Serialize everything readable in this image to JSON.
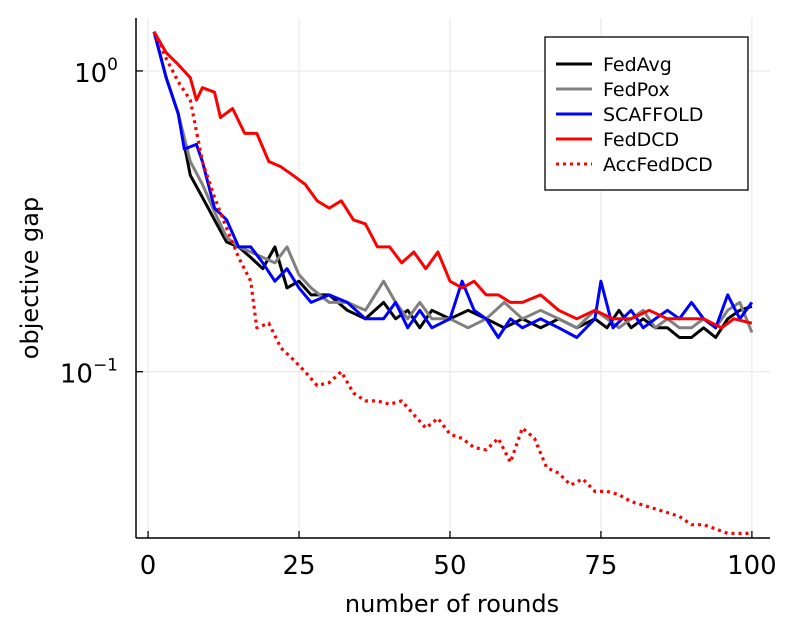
{
  "chart_data": {
    "type": "line",
    "title": "",
    "xlabel": "number of rounds",
    "ylabel": "objective gap",
    "xlim": [
      -2,
      103
    ],
    "ylim": [
      0.028,
      1.5
    ],
    "yscale": "log",
    "grid": true,
    "legend_position": "top-right",
    "x_ticks": [
      {
        "value": 0,
        "label": "0"
      },
      {
        "value": 25,
        "label": "25"
      },
      {
        "value": 50,
        "label": "50"
      },
      {
        "value": 75,
        "label": "75"
      },
      {
        "value": 100,
        "label": "100"
      }
    ],
    "y_ticks": [
      {
        "value": 1,
        "base": "10",
        "exp": "0"
      },
      {
        "value": 0.1,
        "base": "10",
        "exp": "−1"
      }
    ],
    "series": [
      {
        "name": "FedAvg",
        "color": "#000000",
        "style": "solid",
        "points": [
          [
            1,
            1.35
          ],
          [
            3,
            0.95
          ],
          [
            5,
            0.72
          ],
          [
            7,
            0.45
          ],
          [
            9,
            0.38
          ],
          [
            11,
            0.32
          ],
          [
            13,
            0.27
          ],
          [
            15,
            0.26
          ],
          [
            17,
            0.24
          ],
          [
            19,
            0.22
          ],
          [
            21,
            0.26
          ],
          [
            23,
            0.19
          ],
          [
            25,
            0.2
          ],
          [
            27,
            0.18
          ],
          [
            30,
            0.18
          ],
          [
            33,
            0.16
          ],
          [
            36,
            0.15
          ],
          [
            39,
            0.17
          ],
          [
            41,
            0.15
          ],
          [
            43,
            0.16
          ],
          [
            45,
            0.14
          ],
          [
            47,
            0.16
          ],
          [
            50,
            0.15
          ],
          [
            53,
            0.16
          ],
          [
            56,
            0.15
          ],
          [
            59,
            0.14
          ],
          [
            62,
            0.15
          ],
          [
            65,
            0.14
          ],
          [
            68,
            0.15
          ],
          [
            71,
            0.14
          ],
          [
            74,
            0.15
          ],
          [
            76,
            0.14
          ],
          [
            78,
            0.16
          ],
          [
            80,
            0.14
          ],
          [
            82,
            0.15
          ],
          [
            84,
            0.14
          ],
          [
            86,
            0.14
          ],
          [
            88,
            0.13
          ],
          [
            90,
            0.13
          ],
          [
            92,
            0.14
          ],
          [
            94,
            0.13
          ],
          [
            96,
            0.15
          ],
          [
            98,
            0.16
          ],
          [
            100,
            0.165
          ]
        ]
      },
      {
        "name": "FedPox",
        "color": "#808080",
        "style": "solid",
        "points": [
          [
            1,
            1.35
          ],
          [
            3,
            0.95
          ],
          [
            5,
            0.72
          ],
          [
            7,
            0.5
          ],
          [
            9,
            0.42
          ],
          [
            11,
            0.34
          ],
          [
            13,
            0.28
          ],
          [
            15,
            0.26
          ],
          [
            17,
            0.25
          ],
          [
            19,
            0.24
          ],
          [
            21,
            0.23
          ],
          [
            23,
            0.26
          ],
          [
            25,
            0.21
          ],
          [
            27,
            0.19
          ],
          [
            30,
            0.17
          ],
          [
            33,
            0.17
          ],
          [
            36,
            0.16
          ],
          [
            39,
            0.2
          ],
          [
            41,
            0.17
          ],
          [
            43,
            0.15
          ],
          [
            45,
            0.17
          ],
          [
            47,
            0.15
          ],
          [
            50,
            0.15
          ],
          [
            53,
            0.14
          ],
          [
            56,
            0.15
          ],
          [
            59,
            0.17
          ],
          [
            62,
            0.15
          ],
          [
            65,
            0.16
          ],
          [
            68,
            0.15
          ],
          [
            71,
            0.14
          ],
          [
            74,
            0.16
          ],
          [
            76,
            0.15
          ],
          [
            78,
            0.14
          ],
          [
            80,
            0.15
          ],
          [
            82,
            0.16
          ],
          [
            84,
            0.14
          ],
          [
            86,
            0.15
          ],
          [
            88,
            0.14
          ],
          [
            90,
            0.14
          ],
          [
            92,
            0.15
          ],
          [
            94,
            0.14
          ],
          [
            96,
            0.16
          ],
          [
            98,
            0.17
          ],
          [
            100,
            0.135
          ]
        ]
      },
      {
        "name": "SCAFFOLD",
        "color": "#0000ff",
        "style": "solid",
        "points": [
          [
            1,
            1.35
          ],
          [
            3,
            0.95
          ],
          [
            5,
            0.72
          ],
          [
            6,
            0.55
          ],
          [
            8,
            0.57
          ],
          [
            9,
            0.5
          ],
          [
            11,
            0.35
          ],
          [
            13,
            0.32
          ],
          [
            15,
            0.26
          ],
          [
            17,
            0.26
          ],
          [
            19,
            0.23
          ],
          [
            21,
            0.2
          ],
          [
            23,
            0.22
          ],
          [
            25,
            0.19
          ],
          [
            27,
            0.17
          ],
          [
            30,
            0.18
          ],
          [
            33,
            0.17
          ],
          [
            36,
            0.15
          ],
          [
            39,
            0.15
          ],
          [
            41,
            0.17
          ],
          [
            43,
            0.14
          ],
          [
            45,
            0.16
          ],
          [
            47,
            0.14
          ],
          [
            50,
            0.15
          ],
          [
            52,
            0.2
          ],
          [
            54,
            0.16
          ],
          [
            56,
            0.15
          ],
          [
            58,
            0.13
          ],
          [
            60,
            0.15
          ],
          [
            62,
            0.14
          ],
          [
            65,
            0.15
          ],
          [
            68,
            0.14
          ],
          [
            71,
            0.13
          ],
          [
            74,
            0.15
          ],
          [
            75,
            0.2
          ],
          [
            77,
            0.14
          ],
          [
            80,
            0.16
          ],
          [
            82,
            0.14
          ],
          [
            84,
            0.15
          ],
          [
            86,
            0.16
          ],
          [
            88,
            0.15
          ],
          [
            90,
            0.17
          ],
          [
            92,
            0.15
          ],
          [
            94,
            0.14
          ],
          [
            96,
            0.18
          ],
          [
            98,
            0.15
          ],
          [
            100,
            0.17
          ]
        ]
      },
      {
        "name": "FedDCD",
        "color": "#ff0000",
        "style": "solid",
        "points": [
          [
            1,
            1.35
          ],
          [
            3,
            1.15
          ],
          [
            5,
            1.05
          ],
          [
            7,
            0.95
          ],
          [
            8,
            0.8
          ],
          [
            9,
            0.88
          ],
          [
            11,
            0.85
          ],
          [
            12,
            0.7
          ],
          [
            14,
            0.75
          ],
          [
            16,
            0.62
          ],
          [
            18,
            0.62
          ],
          [
            20,
            0.5
          ],
          [
            22,
            0.48
          ],
          [
            24,
            0.45
          ],
          [
            26,
            0.42
          ],
          [
            28,
            0.37
          ],
          [
            30,
            0.35
          ],
          [
            32,
            0.37
          ],
          [
            34,
            0.32
          ],
          [
            36,
            0.31
          ],
          [
            38,
            0.26
          ],
          [
            40,
            0.26
          ],
          [
            42,
            0.23
          ],
          [
            44,
            0.25
          ],
          [
            46,
            0.22
          ],
          [
            48,
            0.25
          ],
          [
            50,
            0.2
          ],
          [
            52,
            0.19
          ],
          [
            54,
            0.2
          ],
          [
            56,
            0.18
          ],
          [
            58,
            0.18
          ],
          [
            60,
            0.17
          ],
          [
            62,
            0.17
          ],
          [
            65,
            0.18
          ],
          [
            68,
            0.16
          ],
          [
            71,
            0.15
          ],
          [
            74,
            0.16
          ],
          [
            77,
            0.15
          ],
          [
            80,
            0.15
          ],
          [
            83,
            0.16
          ],
          [
            86,
            0.15
          ],
          [
            89,
            0.15
          ],
          [
            92,
            0.15
          ],
          [
            95,
            0.14
          ],
          [
            97,
            0.15
          ],
          [
            100,
            0.145
          ]
        ]
      },
      {
        "name": "AccFedDCD",
        "color": "#ff0000",
        "style": "dotted",
        "points": [
          [
            1,
            1.35
          ],
          [
            3,
            1.1
          ],
          [
            5,
            0.92
          ],
          [
            7,
            0.8
          ],
          [
            9,
            0.5
          ],
          [
            11,
            0.38
          ],
          [
            13,
            0.3
          ],
          [
            15,
            0.24
          ],
          [
            17,
            0.2
          ],
          [
            18,
            0.14
          ],
          [
            20,
            0.145
          ],
          [
            22,
            0.12
          ],
          [
            24,
            0.11
          ],
          [
            26,
            0.1
          ],
          [
            28,
            0.09
          ],
          [
            30,
            0.092
          ],
          [
            32,
            0.1
          ],
          [
            34,
            0.085
          ],
          [
            36,
            0.08
          ],
          [
            38,
            0.08
          ],
          [
            40,
            0.078
          ],
          [
            42,
            0.08
          ],
          [
            44,
            0.072
          ],
          [
            46,
            0.065
          ],
          [
            48,
            0.07
          ],
          [
            50,
            0.062
          ],
          [
            52,
            0.06
          ],
          [
            54,
            0.056
          ],
          [
            56,
            0.055
          ],
          [
            58,
            0.06
          ],
          [
            60,
            0.05
          ],
          [
            62,
            0.065
          ],
          [
            64,
            0.06
          ],
          [
            66,
            0.048
          ],
          [
            68,
            0.046
          ],
          [
            70,
            0.042
          ],
          [
            72,
            0.044
          ],
          [
            74,
            0.04
          ],
          [
            76,
            0.04
          ],
          [
            78,
            0.039
          ],
          [
            80,
            0.037
          ],
          [
            82,
            0.036
          ],
          [
            84,
            0.035
          ],
          [
            86,
            0.034
          ],
          [
            88,
            0.033
          ],
          [
            90,
            0.031
          ],
          [
            92,
            0.031
          ],
          [
            94,
            0.03
          ],
          [
            96,
            0.029
          ],
          [
            98,
            0.029
          ],
          [
            100,
            0.029
          ]
        ]
      }
    ]
  }
}
